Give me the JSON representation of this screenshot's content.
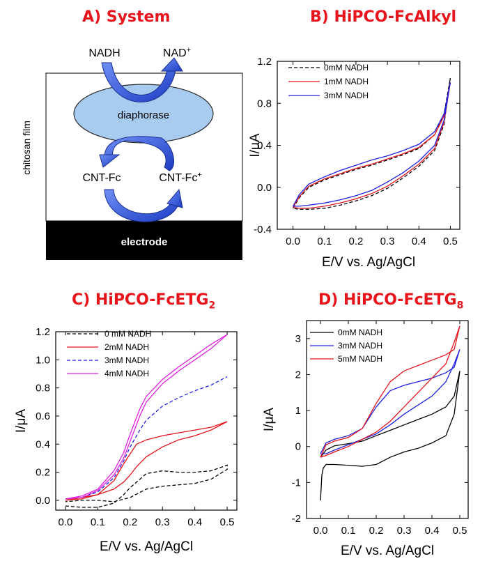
{
  "colors": {
    "title": "#e8141b",
    "arrow": "#3a5fd9",
    "ellipse_fill": "#a8cbf0",
    "black": "#000000",
    "red": "#e8141b",
    "blue": "#2020e0",
    "magenta": "#e020e0"
  },
  "panel_a": {
    "title": "A) System",
    "nadh": "NADH",
    "nad": "NAD",
    "nad_sup": "+",
    "enzyme": "diaphorase",
    "film": "chitosan film",
    "cnt_fc": "CNT-Fc",
    "cnt_fc_plus": "CNT-Fc",
    "cnt_sup": "+",
    "electrode": "electrode"
  },
  "chart_data": [
    {
      "id": "B",
      "type": "line",
      "title": "B) HiPCO-FcAlkyl",
      "xlabel": "E/V vs. Ag/AgCl",
      "ylabel": "I/μA",
      "xlim": [
        -0.05,
        0.53
      ],
      "ylim": [
        -0.4,
        1.2
      ],
      "xticks": [
        "0.0",
        "0.1",
        "0.2",
        "0.3",
        "0.4",
        "0.5"
      ],
      "yticks": [
        "-0.4",
        "0.0",
        "0.4",
        "0.8",
        "1.2"
      ],
      "legend_position": "top-left",
      "series": [
        {
          "name": "0mM NADH",
          "color": "#000000",
          "dash": true,
          "x": [
            0,
            0.02,
            0.05,
            0.1,
            0.15,
            0.2,
            0.25,
            0.3,
            0.35,
            0.4,
            0.45,
            0.48,
            0.5,
            0.5,
            0.48,
            0.45,
            0.4,
            0.35,
            0.3,
            0.25,
            0.2,
            0.15,
            0.1,
            0.05,
            0.02,
            0
          ],
          "y": [
            -0.2,
            -0.1,
            0.0,
            0.07,
            0.12,
            0.17,
            0.21,
            0.26,
            0.31,
            0.37,
            0.5,
            0.7,
            1.04,
            1.04,
            0.6,
            0.35,
            0.2,
            0.09,
            -0.01,
            -0.08,
            -0.13,
            -0.17,
            -0.2,
            -0.21,
            -0.21,
            -0.2
          ]
        },
        {
          "name": "1mM NADH",
          "color": "#e8141b",
          "dash": false,
          "x": [
            0,
            0.02,
            0.05,
            0.1,
            0.15,
            0.2,
            0.25,
            0.3,
            0.35,
            0.4,
            0.45,
            0.48,
            0.5,
            0.5,
            0.48,
            0.45,
            0.4,
            0.35,
            0.3,
            0.25,
            0.2,
            0.15,
            0.1,
            0.05,
            0.02,
            0
          ],
          "y": [
            -0.19,
            -0.09,
            0.01,
            0.08,
            0.13,
            0.18,
            0.22,
            0.27,
            0.32,
            0.38,
            0.5,
            0.68,
            1.0,
            1.0,
            0.62,
            0.37,
            0.22,
            0.11,
            0.01,
            -0.06,
            -0.11,
            -0.15,
            -0.18,
            -0.2,
            -0.2,
            -0.19
          ]
        },
        {
          "name": "3mM NADH",
          "color": "#2020e0",
          "dash": false,
          "x": [
            0,
            0.02,
            0.05,
            0.1,
            0.15,
            0.2,
            0.25,
            0.3,
            0.35,
            0.4,
            0.45,
            0.48,
            0.5,
            0.5,
            0.48,
            0.45,
            0.4,
            0.35,
            0.3,
            0.25,
            0.2,
            0.15,
            0.1,
            0.05,
            0.02,
            0
          ],
          "y": [
            -0.18,
            -0.07,
            0.03,
            0.1,
            0.16,
            0.21,
            0.26,
            0.3,
            0.35,
            0.41,
            0.53,
            0.7,
            1.0,
            1.0,
            0.64,
            0.4,
            0.25,
            0.14,
            0.05,
            -0.03,
            -0.08,
            -0.12,
            -0.15,
            -0.17,
            -0.18,
            -0.18
          ]
        }
      ]
    },
    {
      "id": "C",
      "type": "line",
      "title": "C) HiPCO-FcETG",
      "title_sub": "2",
      "xlabel": "E/V vs. Ag/AgCl",
      "ylabel": "I/μA",
      "xlim": [
        -0.03,
        0.53
      ],
      "ylim": [
        -0.07,
        1.2
      ],
      "xticks": [
        "0.0",
        "0.1",
        "0.2",
        "0.3",
        "0.4",
        "0.5"
      ],
      "yticks": [
        "0.0",
        "0.2",
        "0.4",
        "0.6",
        "0.8",
        "1.0",
        "1.2"
      ],
      "legend_position": "top-left",
      "series": [
        {
          "name": "0 mM NADH",
          "color": "#000000",
          "dash": true,
          "x": [
            0,
            0.05,
            0.1,
            0.15,
            0.18,
            0.2,
            0.23,
            0.25,
            0.3,
            0.35,
            0.4,
            0.45,
            0.5,
            0.5,
            0.45,
            0.4,
            0.35,
            0.3,
            0.25,
            0.2,
            0.15,
            0.1,
            0.05,
            0
          ],
          "y": [
            -0.04,
            -0.05,
            -0.05,
            -0.02,
            0.04,
            0.09,
            0.15,
            0.19,
            0.21,
            0.2,
            0.2,
            0.21,
            0.25,
            0.22,
            0.15,
            0.12,
            0.11,
            0.1,
            0.08,
            0.02,
            -0.01,
            0.0,
            0.0,
            -0.01
          ]
        },
        {
          "name": "2mM NADH",
          "color": "#e8141b",
          "dash": false,
          "x": [
            0,
            0.05,
            0.1,
            0.15,
            0.18,
            0.2,
            0.22,
            0.25,
            0.3,
            0.35,
            0.4,
            0.45,
            0.5,
            0.5,
            0.45,
            0.4,
            0.35,
            0.3,
            0.25,
            0.22,
            0.2,
            0.18,
            0.15,
            0.1,
            0.05,
            0
          ],
          "y": [
            0.0,
            0.01,
            0.04,
            0.14,
            0.26,
            0.33,
            0.4,
            0.43,
            0.46,
            0.48,
            0.5,
            0.52,
            0.56,
            0.56,
            0.5,
            0.46,
            0.43,
            0.38,
            0.31,
            0.24,
            0.18,
            0.13,
            0.08,
            0.04,
            0.02,
            0.0
          ]
        },
        {
          "name": "3mM NADH",
          "color": "#2020e0",
          "dash": true,
          "x": [
            0,
            0.05,
            0.1,
            0.15,
            0.18,
            0.2,
            0.23,
            0.25,
            0.3,
            0.35,
            0.4,
            0.45,
            0.5
          ],
          "y": [
            0.01,
            0.02,
            0.06,
            0.16,
            0.28,
            0.38,
            0.5,
            0.57,
            0.67,
            0.73,
            0.78,
            0.82,
            0.88
          ]
        },
        {
          "name": "4mM NADH",
          "color": "#e020e0",
          "dash": false,
          "x": [
            0,
            0.05,
            0.1,
            0.15,
            0.18,
            0.2,
            0.23,
            0.25,
            0.3,
            0.35,
            0.4,
            0.45,
            0.5,
            0.5,
            0.45,
            0.4,
            0.35,
            0.3,
            0.25,
            0.23,
            0.2,
            0.18,
            0.15,
            0.1,
            0.05,
            0
          ],
          "y": [
            0.01,
            0.02,
            0.07,
            0.18,
            0.3,
            0.42,
            0.6,
            0.7,
            0.83,
            0.92,
            1.0,
            1.08,
            1.18,
            1.18,
            1.11,
            1.03,
            0.95,
            0.86,
            0.74,
            0.65,
            0.47,
            0.34,
            0.21,
            0.08,
            0.03,
            0.01
          ]
        }
      ]
    },
    {
      "id": "D",
      "type": "line",
      "title": "D) HiPCO-FcETG",
      "title_sub": "8",
      "xlabel": "E/V vs. Ag/AgCl",
      "ylabel": "I/μA",
      "xlim": [
        -0.05,
        0.53
      ],
      "ylim": [
        -2,
        3.5
      ],
      "xticks": [
        "0.0",
        "0.1",
        "0.2",
        "0.3",
        "0.4",
        "0.5"
      ],
      "yticks": [
        "-2",
        "-1",
        "0",
        "1",
        "2",
        "3"
      ],
      "legend_position": "top-left",
      "series": [
        {
          "name": "0mM NADH",
          "color": "#000000",
          "dash": false,
          "x": [
            0,
            0.005,
            0.01,
            0.02,
            0.05,
            0.1,
            0.15,
            0.2,
            0.25,
            0.3,
            0.35,
            0.4,
            0.45,
            0.48,
            0.5,
            0.5,
            0.48,
            0.45,
            0.4,
            0.35,
            0.3,
            0.25,
            0.2,
            0.15,
            0.1,
            0.05,
            0.02,
            0
          ],
          "y": [
            -1.5,
            -0.8,
            -0.6,
            -0.5,
            -0.5,
            -0.52,
            -0.55,
            -0.5,
            -0.3,
            -0.15,
            -0.05,
            0.1,
            0.3,
            0.9,
            2.1,
            2.1,
            1.4,
            1.1,
            0.9,
            0.75,
            0.6,
            0.45,
            0.3,
            0.15,
            0.08,
            0.02,
            -0.1,
            -0.3
          ]
        },
        {
          "name": "3mM NADH",
          "color": "#2020e0",
          "dash": false,
          "x": [
            0,
            0.02,
            0.05,
            0.1,
            0.15,
            0.2,
            0.25,
            0.3,
            0.35,
            0.4,
            0.45,
            0.48,
            0.5,
            0.5,
            0.48,
            0.45,
            0.4,
            0.35,
            0.3,
            0.25,
            0.2,
            0.15,
            0.1,
            0.05,
            0.02,
            0
          ],
          "y": [
            -0.2,
            0.1,
            0.2,
            0.3,
            0.5,
            1.1,
            1.55,
            1.7,
            1.8,
            1.9,
            2.05,
            2.2,
            2.7,
            2.7,
            2.3,
            1.8,
            1.4,
            1.15,
            0.9,
            0.6,
            0.35,
            0.2,
            0.05,
            -0.1,
            -0.2,
            -0.2
          ]
        },
        {
          "name": "5mM NADH",
          "color": "#e8141b",
          "dash": false,
          "x": [
            0,
            0.02,
            0.05,
            0.1,
            0.15,
            0.2,
            0.25,
            0.3,
            0.35,
            0.4,
            0.45,
            0.48,
            0.5,
            0.5,
            0.48,
            0.45,
            0.4,
            0.35,
            0.3,
            0.25,
            0.2,
            0.15,
            0.1,
            0.05,
            0.02,
            0
          ],
          "y": [
            -0.3,
            0.05,
            0.15,
            0.25,
            0.5,
            1.2,
            1.8,
            2.1,
            2.25,
            2.4,
            2.55,
            2.7,
            3.35,
            3.35,
            2.9,
            2.3,
            1.9,
            1.5,
            1.1,
            0.7,
            0.4,
            0.2,
            0.0,
            -0.15,
            -0.25,
            -0.3
          ]
        }
      ]
    }
  ]
}
